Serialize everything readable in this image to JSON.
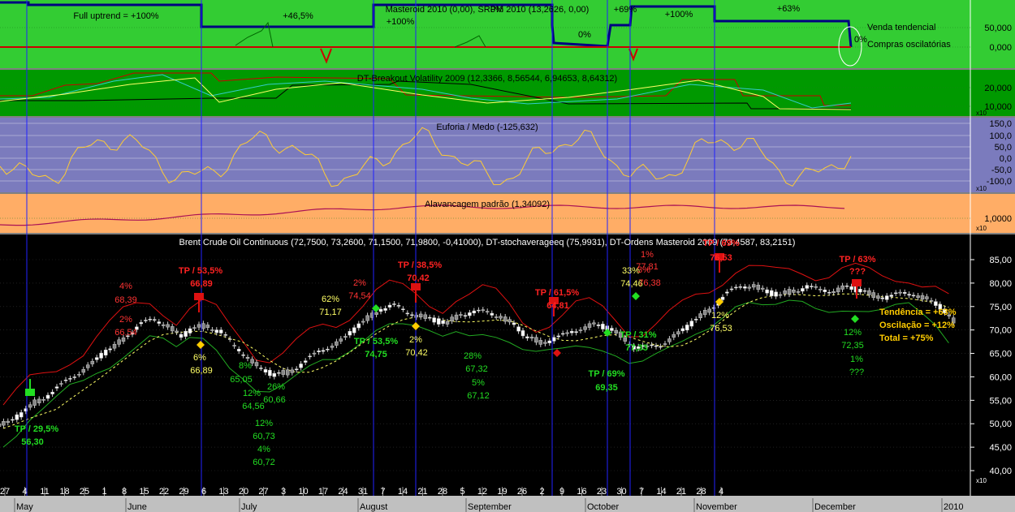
{
  "panels": {
    "masteroid": {
      "title": "Masteroid 2010 (0,00), SRPM 2010 (13,2626, 0,00)",
      "ticks": [
        "50,000",
        "0,000"
      ],
      "bg": "#33cc33",
      "labels": [
        "Full uptrend = +100%",
        "+46,5%",
        "+100%",
        "+69%",
        "+100%",
        "+63%",
        "0%",
        "0%",
        "0%"
      ],
      "legend": [
        "Venda tendencial",
        "Compras oscilatórias"
      ]
    },
    "breakout": {
      "title": "DT-Breakout Volatility 2009 (12,3366, 8,56544, 6,94653, 8,64312)",
      "ticks": [
        "20,000",
        "10,000"
      ],
      "bg": "#009900",
      "scale_tag": "x10"
    },
    "euforia": {
      "title": "Euforia / Medo (-125,632)",
      "ticks": [
        "150,0",
        "100,0",
        "50,0",
        "0,0",
        "-50,0",
        "-100,0"
      ],
      "bg": "#7b7bbd",
      "scale_tag": "x10"
    },
    "alavancagem": {
      "title": "Alavancagem padrão (1,34092)",
      "ticks": [
        "1,0000"
      ],
      "bg": "#ffad66",
      "scale_tag": "x10"
    },
    "main": {
      "title": "Brent Crude Oil Continuous (72,7500, 73,2600, 71,1500, 71,9800, -0,41000), DT-stochaverageeq (75,9931), DT-Ordens Masteroid 2009 (73,4587, 83,2151)",
      "scale_tag": "x10"
    }
  },
  "chart_data": {
    "type": "candlestick",
    "x_labels": [
      "27",
      "4",
      "11",
      "18",
      "25",
      "1",
      "8",
      "15",
      "22",
      "29",
      "6",
      "13",
      "20",
      "27",
      "3",
      "10",
      "17",
      "24",
      "31",
      "7",
      "14",
      "21",
      "28",
      "5",
      "12",
      "19",
      "26",
      "2",
      "9",
      "16",
      "23",
      "30",
      "7",
      "14",
      "21",
      "28",
      "4"
    ],
    "months": [
      "May",
      "June",
      "July",
      "August",
      "September",
      "October",
      "November",
      "December",
      "2010"
    ],
    "y_ticks": [
      85,
      80,
      75,
      70,
      65,
      60,
      55,
      50,
      45,
      40
    ],
    "y_tick_labels": [
      "85,00",
      "80,00",
      "75,00",
      "70,00",
      "65,00",
      "60,00",
      "55,00",
      "50,00",
      "45,00",
      "40,00"
    ],
    "ylim": [
      37.5,
      87.5
    ],
    "price_path": [
      50,
      52,
      54.5,
      56,
      58,
      60.5,
      62,
      64.5,
      66.5,
      69,
      71,
      72.5,
      71,
      68.5,
      70.5,
      71,
      69.5,
      66.5,
      64.5,
      61.5,
      60.5,
      61,
      62.5,
      64.5,
      66.5,
      67.5,
      70,
      72.5,
      74.5,
      75,
      74,
      73,
      72,
      71.5,
      73.5,
      73.5,
      74,
      73,
      71,
      68.5,
      67.5,
      68,
      69,
      70.5,
      71,
      70.5,
      69,
      66.5,
      66,
      67,
      68.5,
      70.5,
      73,
      75,
      77.5,
      79.5,
      79.5,
      78,
      77.5,
      78.5,
      79,
      78.5,
      78.5,
      79,
      78.5,
      77.5,
      77,
      77.5,
      78,
      76.5,
      75,
      72
    ],
    "annotations": [
      {
        "text": "TP / 29,5%",
        "color": "#22dd22",
        "bold": true
      },
      {
        "text": "56,30",
        "color": "#22dd22",
        "bold": true
      },
      {
        "text": "4%",
        "color": "#ff3333"
      },
      {
        "text": "68,39",
        "color": "#ff3333"
      },
      {
        "text": "2%",
        "color": "#ff3333"
      },
      {
        "text": "66,54",
        "color": "#ff3333"
      },
      {
        "text": "TP / 53,5%",
        "color": "#ff2222",
        "bold": true
      },
      {
        "text": "66,89",
        "color": "#ff2222",
        "bold": true
      },
      {
        "text": "6%",
        "color": "#ffff66"
      },
      {
        "text": "66,89",
        "color": "#ffff66"
      },
      {
        "text": "8%",
        "color": "#22dd22"
      },
      {
        "text": "65,05",
        "color": "#22dd22"
      },
      {
        "text": "12%",
        "color": "#22dd22"
      },
      {
        "text": "64,56",
        "color": "#22dd22"
      },
      {
        "text": "26%",
        "color": "#22dd22"
      },
      {
        "text": "60,66",
        "color": "#22dd22"
      },
      {
        "text": "12%",
        "color": "#22dd22"
      },
      {
        "text": "60,73",
        "color": "#22dd22"
      },
      {
        "text": "4%",
        "color": "#22dd22"
      },
      {
        "text": "60,72",
        "color": "#22dd22"
      },
      {
        "text": "62%",
        "color": "#ffff66"
      },
      {
        "text": "71,17",
        "color": "#ffff66"
      },
      {
        "text": "2%",
        "color": "#ff3333"
      },
      {
        "text": "74,54",
        "color": "#ff3333"
      },
      {
        "text": "TP / 53,5%",
        "color": "#22dd22",
        "bold": true
      },
      {
        "text": "74,75",
        "color": "#22dd22",
        "bold": true
      },
      {
        "text": "TP / 38,5%",
        "color": "#ff2222",
        "bold": true
      },
      {
        "text": "70,42",
        "color": "#ff2222",
        "bold": true
      },
      {
        "text": "2%",
        "color": "#ffff66"
      },
      {
        "text": "70,42",
        "color": "#ffff66"
      },
      {
        "text": "28%",
        "color": "#22dd22"
      },
      {
        "text": "67,32",
        "color": "#22dd22"
      },
      {
        "text": "5%",
        "color": "#22dd22"
      },
      {
        "text": "67,12",
        "color": "#22dd22"
      },
      {
        "text": "TP / 61,5%",
        "color": "#ff2222",
        "bold": true
      },
      {
        "text": "64,81",
        "color": "#ff2222",
        "bold": true
      },
      {
        "text": "TP / 69%",
        "color": "#22dd22",
        "bold": true
      },
      {
        "text": "69,35",
        "color": "#22dd22",
        "bold": true
      },
      {
        "text": "33%",
        "color": "#ffff66"
      },
      {
        "text": "74,46",
        "color": "#ffff66"
      },
      {
        "text": "TP / 31%",
        "color": "#22dd22",
        "bold": true
      },
      {
        "text": "77,33",
        "color": "#22dd22",
        "bold": true
      },
      {
        "text": "1%",
        "color": "#ff3333"
      },
      {
        "text": "77,81",
        "color": "#ff3333"
      },
      {
        "text": "3%",
        "color": "#ff3333"
      },
      {
        "text": "76,38",
        "color": "#ff3333"
      },
      {
        "text": "TP / 69%",
        "color": "#ff2222",
        "bold": true
      },
      {
        "text": "76,53",
        "color": "#ff2222",
        "bold": true
      },
      {
        "text": "12%",
        "color": "#ffff66"
      },
      {
        "text": "76,53",
        "color": "#ffff66"
      },
      {
        "text": "TP / 63%",
        "color": "#ff2222",
        "bold": true
      },
      {
        "text": "???",
        "color": "#ff2222",
        "bold": true
      },
      {
        "text": "12%",
        "color": "#22dd22"
      },
      {
        "text": "72,35",
        "color": "#22dd22"
      },
      {
        "text": "1%",
        "color": "#22dd22"
      },
      {
        "text": "???",
        "color": "#22dd22"
      }
    ],
    "summary": [
      "Tendência = +63%",
      "Oscilação = +12%",
      "Total = +75%"
    ],
    "summary_color": "#ffcc00"
  }
}
